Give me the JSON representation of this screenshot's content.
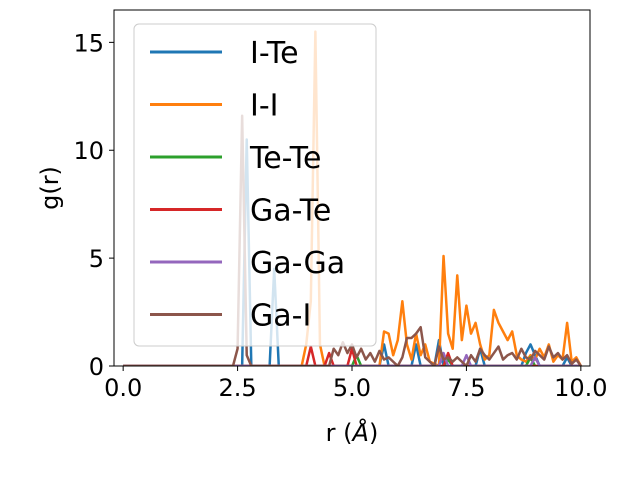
{
  "chart_data": {
    "type": "line",
    "title": "",
    "xlabel": "r (",
    "xlabel_symbol": "Å",
    "xlabel_suffix": ")",
    "ylabel": "g(r)",
    "xlim": [
      -0.2,
      10.2
    ],
    "ylim": [
      0,
      16.5
    ],
    "xticks": [
      "0.0",
      "2.5",
      "5.0",
      "7.5",
      "10.0"
    ],
    "xtick_values": [
      0,
      2.5,
      5,
      7.5,
      10
    ],
    "yticks": [
      "0",
      "5",
      "10",
      "15"
    ],
    "ytick_values": [
      0,
      5,
      10,
      15
    ],
    "grid": false,
    "legend_position": "upper-left",
    "series": [
      {
        "name": "I-Te",
        "color": "#1f77b4",
        "points": [
          [
            0,
            0
          ],
          [
            2.5,
            0
          ],
          [
            2.6,
            0
          ],
          [
            2.7,
            10.5
          ],
          [
            2.8,
            0
          ],
          [
            3.2,
            0
          ],
          [
            3.3,
            4.5
          ],
          [
            3.4,
            0
          ],
          [
            5.6,
            0
          ],
          [
            5.7,
            1.0
          ],
          [
            5.8,
            0
          ],
          [
            6.3,
            0
          ],
          [
            6.4,
            1.0
          ],
          [
            6.5,
            0
          ],
          [
            6.8,
            0
          ],
          [
            6.9,
            1.2
          ],
          [
            7.0,
            0
          ],
          [
            7.7,
            0
          ],
          [
            7.8,
            0.8
          ],
          [
            7.9,
            0
          ],
          [
            8.7,
            0
          ],
          [
            8.8,
            0.6
          ],
          [
            8.9,
            1.0
          ],
          [
            9.0,
            0.5
          ],
          [
            9.1,
            0
          ],
          [
            9.6,
            0
          ],
          [
            9.7,
            0.4
          ],
          [
            9.8,
            0
          ],
          [
            10,
            0
          ]
        ]
      },
      {
        "name": "I-I",
        "color": "#ff7f0e",
        "points": [
          [
            0,
            0
          ],
          [
            3.9,
            0
          ],
          [
            4.0,
            1.0
          ],
          [
            4.1,
            3.0
          ],
          [
            4.2,
            15.5
          ],
          [
            4.3,
            1.0
          ],
          [
            4.4,
            0
          ],
          [
            5.6,
            0
          ],
          [
            5.7,
            1.6
          ],
          [
            5.8,
            1.5
          ],
          [
            5.9,
            0.5
          ],
          [
            6.0,
            1.2
          ],
          [
            6.1,
            3.0
          ],
          [
            6.2,
            1.0
          ],
          [
            6.3,
            0.3
          ],
          [
            6.4,
            1.5
          ],
          [
            6.5,
            0.5
          ],
          [
            6.6,
            1.0
          ],
          [
            6.7,
            0.2
          ],
          [
            6.9,
            0
          ],
          [
            7.0,
            5.1
          ],
          [
            7.1,
            1.5
          ],
          [
            7.2,
            0.8
          ],
          [
            7.3,
            4.2
          ],
          [
            7.4,
            1.2
          ],
          [
            7.5,
            2.8
          ],
          [
            7.6,
            1.5
          ],
          [
            7.7,
            2.0
          ],
          [
            7.8,
            1.0
          ],
          [
            7.9,
            0.3
          ],
          [
            8.0,
            0.5
          ],
          [
            8.1,
            2.6
          ],
          [
            8.2,
            2.0
          ],
          [
            8.3,
            1.6
          ],
          [
            8.4,
            1.2
          ],
          [
            8.5,
            1.6
          ],
          [
            8.6,
            0.5
          ],
          [
            8.7,
            0.3
          ],
          [
            8.8,
            0.2
          ],
          [
            8.9,
            0.5
          ],
          [
            9.0,
            0.3
          ],
          [
            9.1,
            0.8
          ],
          [
            9.2,
            0.4
          ],
          [
            9.3,
            1.0
          ],
          [
            9.4,
            0.2
          ],
          [
            9.5,
            0.5
          ],
          [
            9.6,
            0.3
          ],
          [
            9.7,
            2.0
          ],
          [
            9.8,
            0.2
          ],
          [
            9.9,
            0.4
          ],
          [
            10,
            0
          ]
        ]
      },
      {
        "name": "Te-Te",
        "color": "#2ca02c",
        "points": [
          [
            0,
            0
          ],
          [
            5.0,
            0
          ],
          [
            5.1,
            0.5
          ],
          [
            5.2,
            0
          ],
          [
            7.0,
            0
          ],
          [
            7.1,
            0.3
          ],
          [
            7.2,
            0
          ],
          [
            8.8,
            0
          ],
          [
            8.9,
            0.4
          ],
          [
            9.0,
            0
          ],
          [
            10,
            0
          ]
        ]
      },
      {
        "name": "Ga-Te",
        "color": "#d62728",
        "points": [
          [
            0,
            0
          ],
          [
            4.0,
            0
          ],
          [
            4.1,
            0.9
          ],
          [
            4.2,
            0
          ],
          [
            4.4,
            0
          ],
          [
            4.5,
            0.6
          ],
          [
            4.6,
            0
          ],
          [
            4.9,
            0
          ],
          [
            5.0,
            0.8
          ],
          [
            5.1,
            0
          ],
          [
            7.0,
            0
          ],
          [
            7.1,
            0.6
          ],
          [
            7.2,
            0
          ],
          [
            10,
            0
          ]
        ]
      },
      {
        "name": "Ga-Ga",
        "color": "#9467bd",
        "points": [
          [
            0,
            0
          ],
          [
            6.9,
            0
          ],
          [
            7.0,
            0.6
          ],
          [
            7.1,
            0
          ],
          [
            7.4,
            0
          ],
          [
            7.5,
            0.5
          ],
          [
            7.6,
            0
          ],
          [
            8.9,
            0
          ],
          [
            9.0,
            0.4
          ],
          [
            9.1,
            0
          ],
          [
            10,
            0
          ]
        ]
      },
      {
        "name": "Ga-I",
        "color": "#8c564b",
        "points": [
          [
            0,
            0
          ],
          [
            2.4,
            0
          ],
          [
            2.5,
            0.8
          ],
          [
            2.6,
            11.6
          ],
          [
            2.7,
            0.5
          ],
          [
            2.8,
            0
          ],
          [
            4.5,
            0
          ],
          [
            4.6,
            0.8
          ],
          [
            4.7,
            0.5
          ],
          [
            4.8,
            1.1
          ],
          [
            4.9,
            0.6
          ],
          [
            5.0,
            1.0
          ],
          [
            5.1,
            0.4
          ],
          [
            5.2,
            0.8
          ],
          [
            5.3,
            0.3
          ],
          [
            5.4,
            0.6
          ],
          [
            5.5,
            0.2
          ],
          [
            5.6,
            0.7
          ],
          [
            5.7,
            0.3
          ],
          [
            5.8,
            0.4
          ],
          [
            6.0,
            0
          ],
          [
            6.1,
            0.4
          ],
          [
            6.2,
            1.3
          ],
          [
            6.3,
            1.3
          ],
          [
            6.4,
            1.5
          ],
          [
            6.5,
            1.8
          ],
          [
            6.6,
            0.4
          ],
          [
            6.8,
            0
          ],
          [
            6.9,
            0.9
          ],
          [
            7.0,
            0.3
          ],
          [
            7.1,
            0.4
          ],
          [
            7.2,
            0.2
          ],
          [
            7.3,
            0.4
          ],
          [
            7.5,
            0
          ],
          [
            7.6,
            0.5
          ],
          [
            7.7,
            0.2
          ],
          [
            7.8,
            0.8
          ],
          [
            7.9,
            0.5
          ],
          [
            8.0,
            0.3
          ],
          [
            8.1,
            0.6
          ],
          [
            8.2,
            0.9
          ],
          [
            8.3,
            0.3
          ],
          [
            8.4,
            0.5
          ],
          [
            8.5,
            0.6
          ],
          [
            8.6,
            0.3
          ],
          [
            8.7,
            0.8
          ],
          [
            8.8,
            0.4
          ],
          [
            8.9,
            0.3
          ],
          [
            9.0,
            0.7
          ],
          [
            9.1,
            0.5
          ],
          [
            9.2,
            0.3
          ],
          [
            9.3,
            0.9
          ],
          [
            9.4,
            0.4
          ],
          [
            9.5,
            0.6
          ],
          [
            9.6,
            0.3
          ],
          [
            9.7,
            0.5
          ],
          [
            9.8,
            0.1
          ],
          [
            9.9,
            0.3
          ],
          [
            10,
            0
          ]
        ]
      }
    ]
  }
}
